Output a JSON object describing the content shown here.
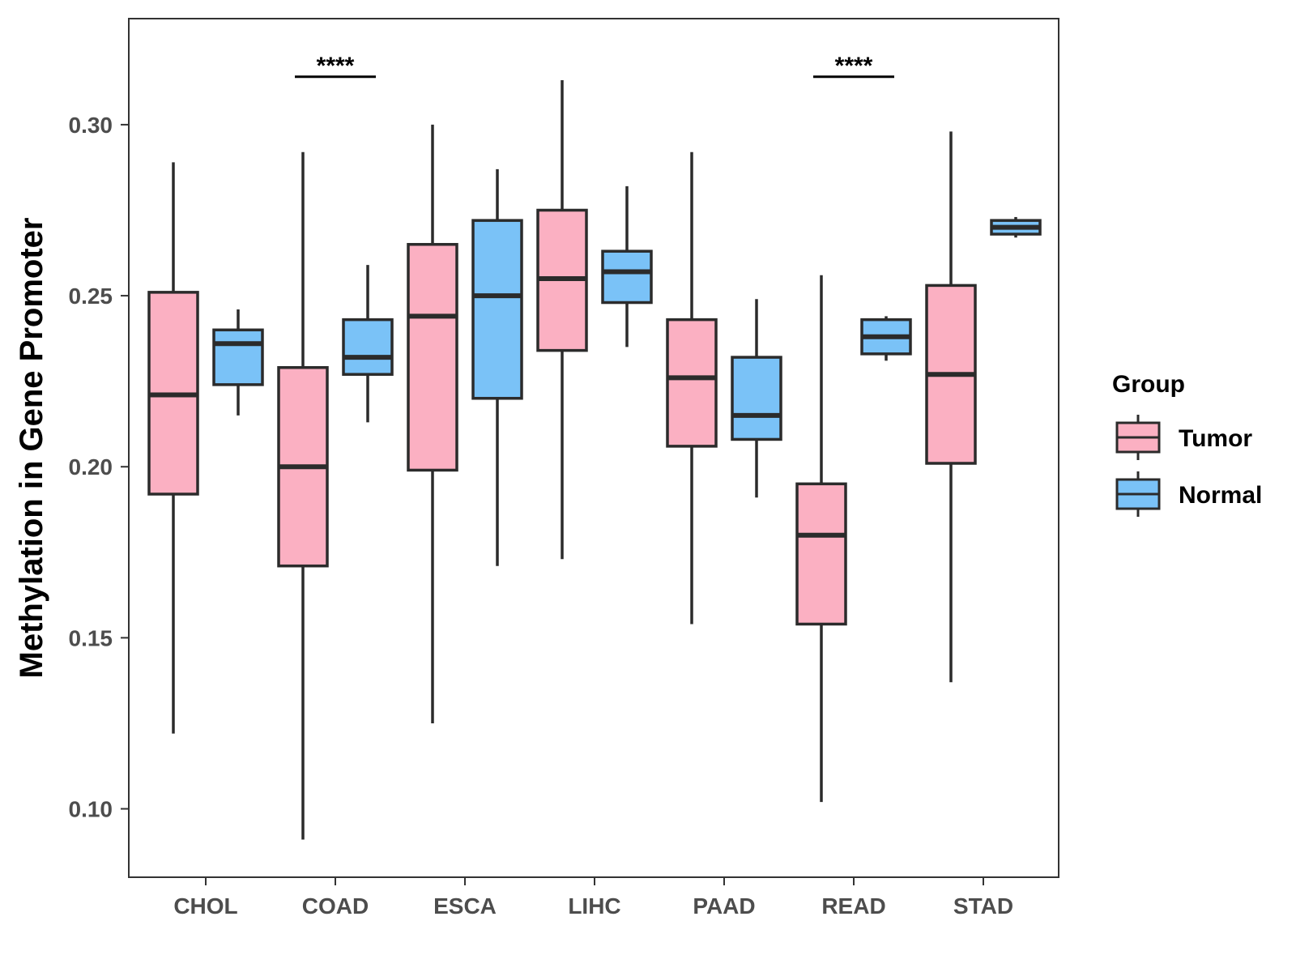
{
  "chart_data": {
    "type": "boxplot",
    "xlabel": "",
    "ylabel": "Methylation in Gene Promoter",
    "ylim": [
      0.08,
      0.331
    ],
    "yticks": [
      0.1,
      0.15,
      0.2,
      0.25,
      0.3
    ],
    "ytick_labels": [
      "0.10",
      "0.15",
      "0.20",
      "0.25",
      "0.30"
    ],
    "categories": [
      "CHOL",
      "COAD",
      "ESCA",
      "LIHC",
      "PAAD",
      "READ",
      "STAD"
    ],
    "grid": false,
    "legend": {
      "title": "Group",
      "position": "right",
      "entries": [
        {
          "name": "Tumor",
          "color": "#FBB0C2"
        },
        {
          "name": "Normal",
          "color": "#7AC2F7"
        }
      ]
    },
    "series": [
      {
        "name": "Tumor",
        "color": "#FBB0C2",
        "boxes": [
          {
            "category": "CHOL",
            "min": 0.122,
            "q1": 0.192,
            "median": 0.221,
            "q3": 0.251,
            "max": 0.289
          },
          {
            "category": "COAD",
            "min": 0.091,
            "q1": 0.171,
            "median": 0.2,
            "q3": 0.229,
            "max": 0.292
          },
          {
            "category": "ESCA",
            "min": 0.125,
            "q1": 0.199,
            "median": 0.244,
            "q3": 0.265,
            "max": 0.3
          },
          {
            "category": "LIHC",
            "min": 0.173,
            "q1": 0.234,
            "median": 0.255,
            "q3": 0.275,
            "max": 0.313
          },
          {
            "category": "PAAD",
            "min": 0.154,
            "q1": 0.206,
            "median": 0.226,
            "q3": 0.243,
            "max": 0.292
          },
          {
            "category": "READ",
            "min": 0.102,
            "q1": 0.154,
            "median": 0.18,
            "q3": 0.195,
            "max": 0.256
          },
          {
            "category": "STAD",
            "min": 0.137,
            "q1": 0.201,
            "median": 0.227,
            "q3": 0.253,
            "max": 0.298
          }
        ]
      },
      {
        "name": "Normal",
        "color": "#7AC2F7",
        "boxes": [
          {
            "category": "CHOL",
            "min": 0.215,
            "q1": 0.224,
            "median": 0.236,
            "q3": 0.24,
            "max": 0.246
          },
          {
            "category": "COAD",
            "min": 0.213,
            "q1": 0.227,
            "median": 0.232,
            "q3": 0.243,
            "max": 0.259
          },
          {
            "category": "ESCA",
            "min": 0.171,
            "q1": 0.22,
            "median": 0.25,
            "q3": 0.272,
            "max": 0.287
          },
          {
            "category": "LIHC",
            "min": 0.235,
            "q1": 0.248,
            "median": 0.257,
            "q3": 0.263,
            "max": 0.282
          },
          {
            "category": "PAAD",
            "min": 0.191,
            "q1": 0.208,
            "median": 0.215,
            "q3": 0.232,
            "max": 0.249
          },
          {
            "category": "READ",
            "min": 0.231,
            "q1": 0.233,
            "median": 0.238,
            "q3": 0.243,
            "max": 0.244
          },
          {
            "category": "STAD",
            "min": 0.267,
            "q1": 0.268,
            "median": 0.27,
            "q3": 0.272,
            "max": 0.273
          }
        ]
      }
    ],
    "annotations": [
      {
        "category": "COAD",
        "text": "****",
        "y": 0.314
      },
      {
        "category": "READ",
        "text": "****",
        "y": 0.314
      }
    ]
  }
}
